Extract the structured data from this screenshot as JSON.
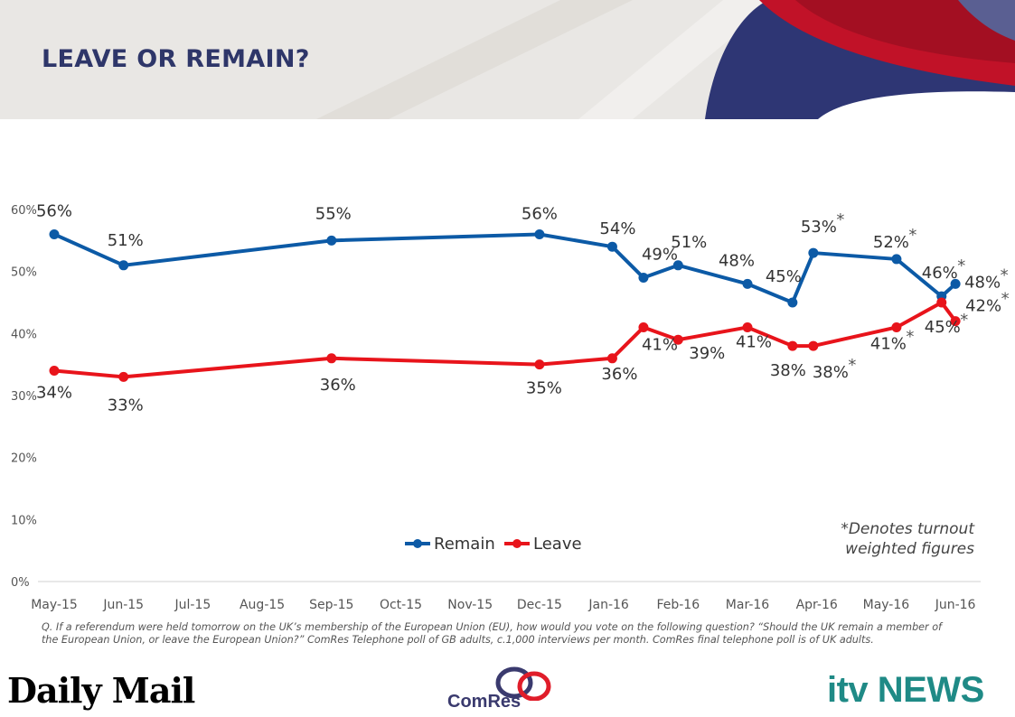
{
  "header": {
    "title": "LEAVE OR REMAIN?"
  },
  "chart_data": {
    "type": "line",
    "title": "LEAVE OR REMAIN?",
    "categories": [
      "May-15",
      "Jun-15",
      "Jul-15",
      "Aug-15",
      "Sep-15",
      "Oct-15",
      "Nov-15",
      "Dec-15",
      "Jan-16",
      "Feb-16",
      "Mar-16",
      "Apr-16",
      "May-16",
      "Jun-16"
    ],
    "ylim": [
      0,
      60
    ],
    "yticks": [
      "0%",
      "10%",
      "20%",
      "30%",
      "40%",
      "50%",
      "60%"
    ],
    "series": [
      {
        "name": "Remain",
        "color": "#0c5aa6",
        "points": [
          {
            "x": 0,
            "y": 56,
            "label": "56%",
            "star": false
          },
          {
            "x": 1,
            "y": 51,
            "label": "51%",
            "star": false
          },
          {
            "x": 4,
            "y": 55,
            "label": "55%",
            "star": false
          },
          {
            "x": 7,
            "y": 56,
            "label": "56%",
            "star": false
          },
          {
            "x": 8.05,
            "y": 54,
            "label": "54%",
            "star": false
          },
          {
            "x": 8.5,
            "y": 49,
            "label": "49%",
            "star": false
          },
          {
            "x": 9.0,
            "y": 51,
            "label": "51%",
            "star": false
          },
          {
            "x": 10.0,
            "y": 48,
            "label": "48%",
            "star": false
          },
          {
            "x": 10.65,
            "y": 45,
            "label": "45%",
            "star": false
          },
          {
            "x": 10.95,
            "y": 53,
            "label": "53%",
            "star": true
          },
          {
            "x": 12.15,
            "y": 52,
            "label": "52%",
            "star": true
          },
          {
            "x": 12.8,
            "y": 46,
            "label": "46%",
            "star": true
          },
          {
            "x": 13.0,
            "y": 48,
            "label": "48%",
            "star": true
          }
        ]
      },
      {
        "name": "Leave",
        "color": "#e8141b",
        "points": [
          {
            "x": 0,
            "y": 34,
            "label": "34%",
            "star": false
          },
          {
            "x": 1,
            "y": 33,
            "label": "33%",
            "star": false
          },
          {
            "x": 4,
            "y": 36,
            "label": "36%",
            "star": false
          },
          {
            "x": 7,
            "y": 35,
            "label": "35%",
            "star": false
          },
          {
            "x": 8.05,
            "y": 36,
            "label": "36%",
            "star": false
          },
          {
            "x": 8.5,
            "y": 41,
            "label": "41%",
            "star": false
          },
          {
            "x": 9.0,
            "y": 39,
            "label": "39%",
            "star": false
          },
          {
            "x": 10.0,
            "y": 41,
            "label": "41%",
            "star": false
          },
          {
            "x": 10.65,
            "y": 38,
            "label": "38%",
            "star": false
          },
          {
            "x": 10.95,
            "y": 38,
            "label": "38%",
            "star": true
          },
          {
            "x": 12.15,
            "y": 41,
            "label": "41%",
            "star": true
          },
          {
            "x": 12.8,
            "y": 45,
            "label": "45%",
            "star": true
          },
          {
            "x": 13.0,
            "y": 42,
            "label": "42%",
            "star": true
          }
        ]
      }
    ],
    "star_symbol": "*",
    "legend": {
      "placement": "bottom-center"
    },
    "footnote": "*Denotes turnout weighted figures"
  },
  "note": "Q. If a referendum were held tomorrow on the UK’s membership of the European Union (EU), how would you vote on the following question? “Should the UK remain a member of the European Union, or leave the European Union?” ComRes Telephone poll of GB adults, c.1,000 interviews per month. ComRes final telephone poll is of UK adults.",
  "logos": {
    "daily_mail": "Daily Mail",
    "comres": "ComRes",
    "itv_news": "itv NEWS"
  },
  "colors": {
    "title": "#2e3669",
    "remain": "#0c5aa6",
    "leave": "#e8141b",
    "itv": "#1f8a86"
  }
}
